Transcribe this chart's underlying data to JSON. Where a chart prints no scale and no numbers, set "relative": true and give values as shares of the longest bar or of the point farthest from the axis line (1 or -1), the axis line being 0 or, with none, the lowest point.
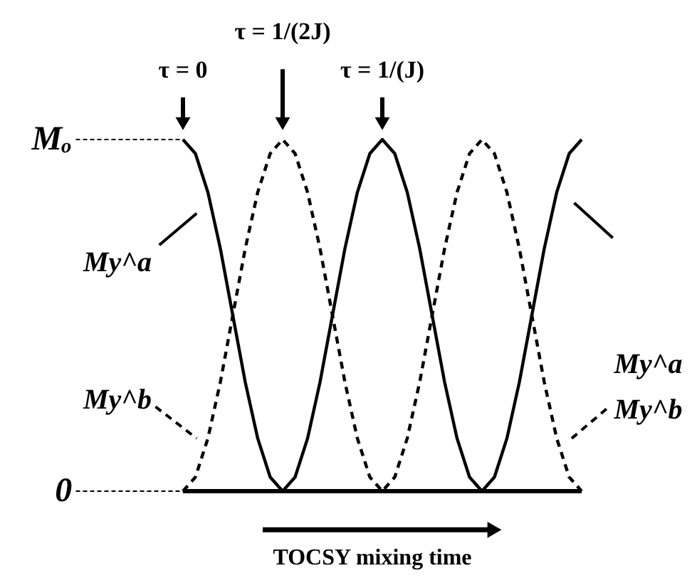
{
  "chart_data": {
    "type": "line",
    "relative": true,
    "xlabel": "TOCSY mixing time",
    "categories": [
      null,
      null,
      null,
      null,
      null,
      null,
      null,
      null,
      null,
      null,
      null,
      null,
      null,
      null,
      null,
      null,
      null,
      null,
      null,
      null,
      null,
      null,
      null,
      null,
      null,
      null,
      null,
      null,
      null,
      null,
      null,
      null,
      null
    ],
    "marker": "none",
    "annotations": [
      "τ = 0",
      "τ = 1/(2J)",
      "τ = 1/(J)",
      "Mₒ",
      "0"
    ],
    "series": [
      {
        "name": "My^a",
        "color": "#000000",
        "line_style": "solid",
        "values": [
          1,
          0.96,
          0.85,
          0.69,
          0.5,
          0.31,
          0.15,
          0.04,
          0,
          0.04,
          0.15,
          0.31,
          0.5,
          0.69,
          0.85,
          0.96,
          1,
          0.96,
          0.85,
          0.69,
          0.5,
          0.31,
          0.15,
          0.04,
          0,
          0.04,
          0.15,
          0.31,
          0.5,
          0.69,
          0.85,
          0.96,
          1
        ]
      },
      {
        "name": "My^b",
        "color": "#000000",
        "line_style": "dashed",
        "values": [
          0,
          0.04,
          0.15,
          0.31,
          0.5,
          0.69,
          0.85,
          0.96,
          1,
          0.96,
          0.85,
          0.69,
          0.5,
          0.31,
          0.15,
          0.04,
          0,
          0.04,
          0.15,
          0.31,
          0.5,
          0.69,
          0.85,
          0.96,
          1,
          0.96,
          0.85,
          0.69,
          0.5,
          0.31,
          0.15,
          0.04,
          0
        ]
      }
    ]
  }
}
